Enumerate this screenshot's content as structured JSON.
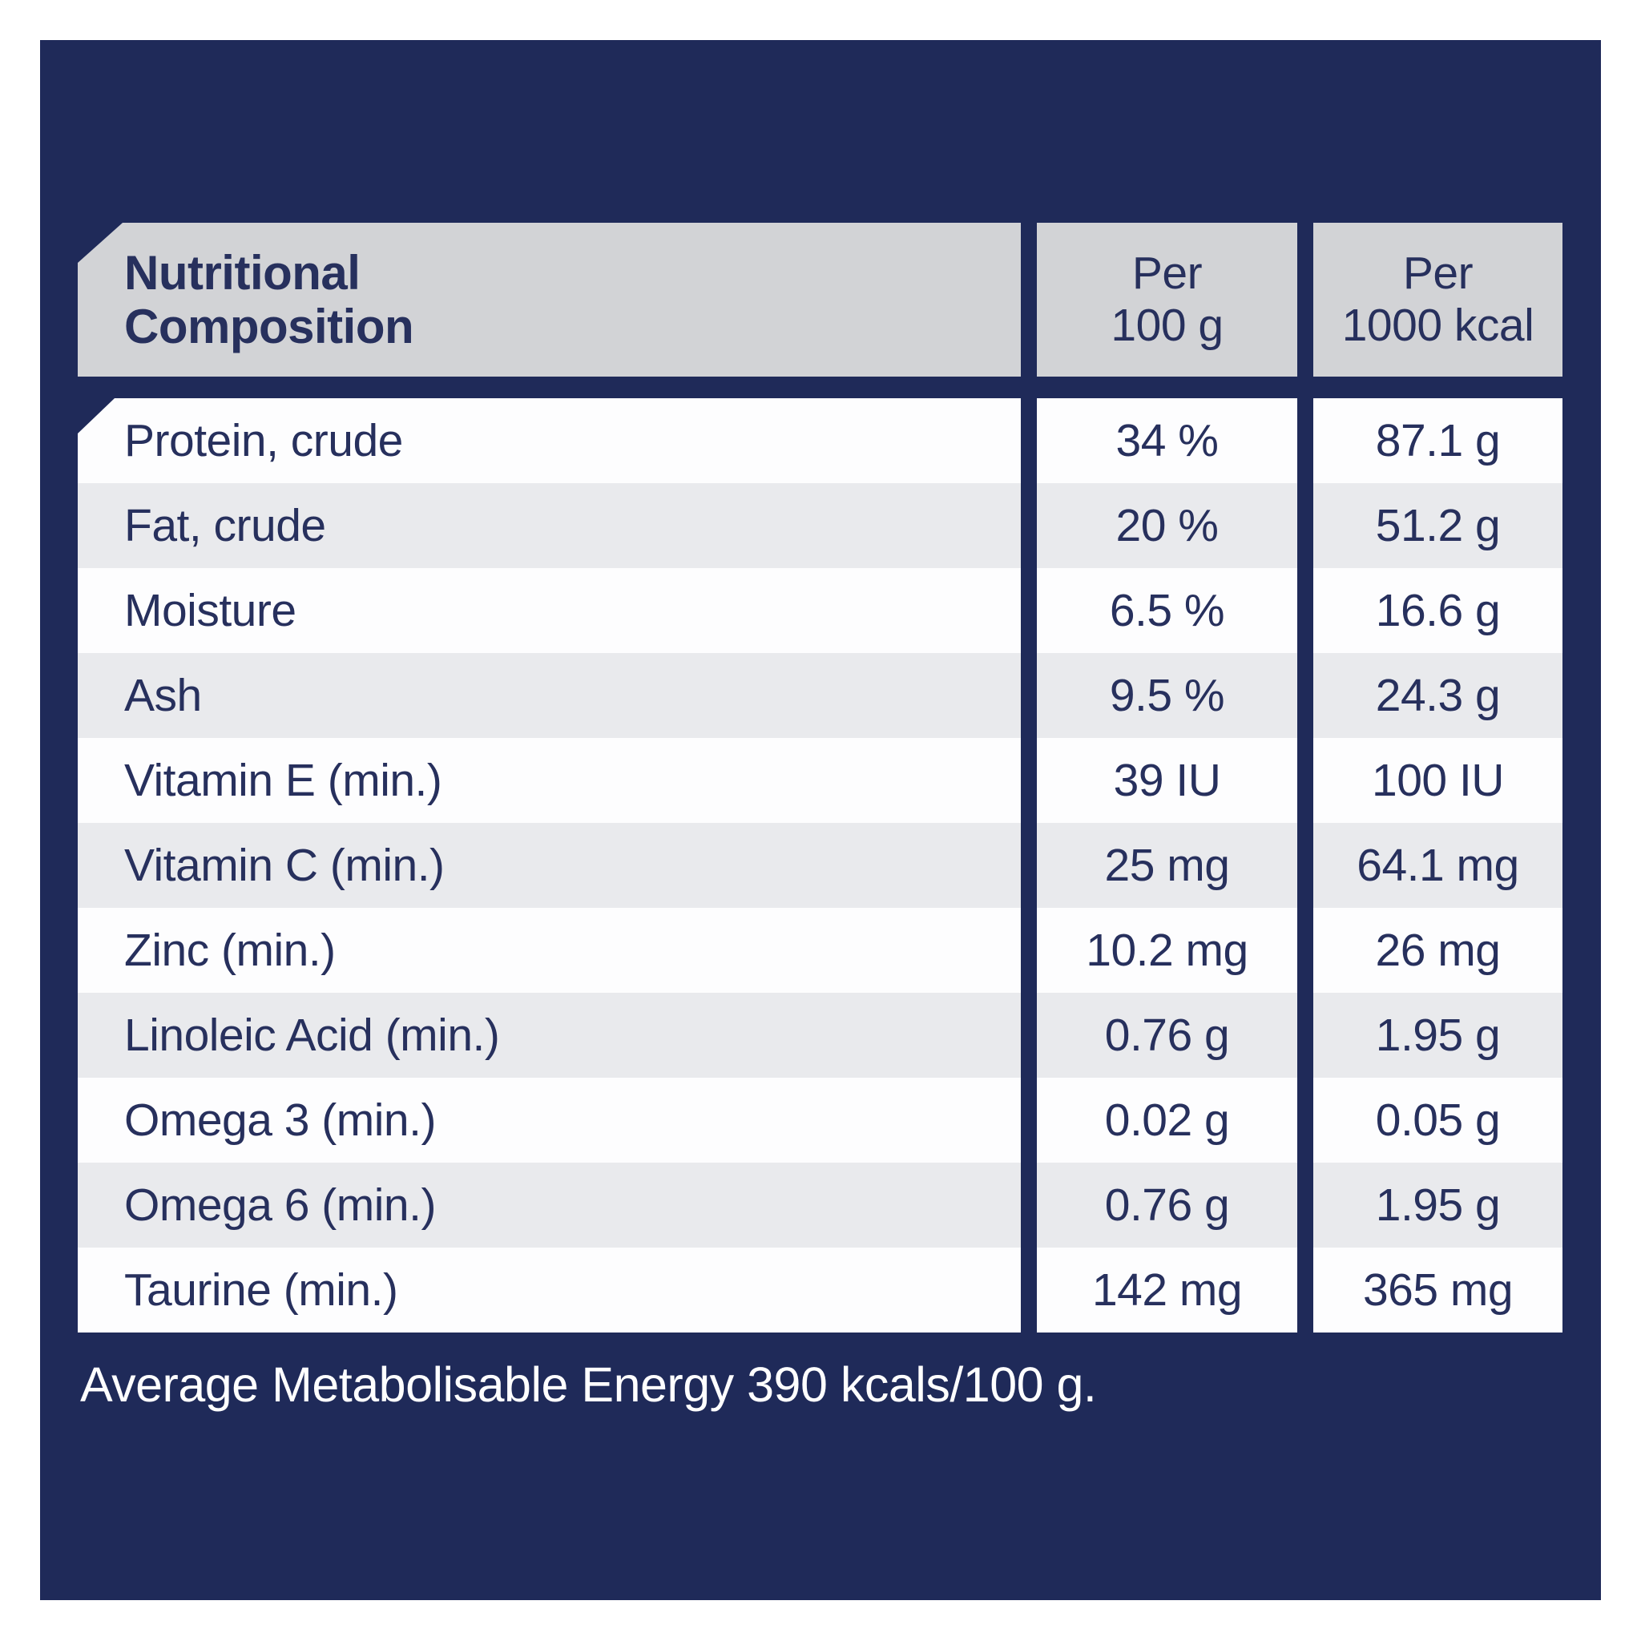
{
  "colors": {
    "panel_navy": "#1f2a59",
    "header_gray": "#d2d3d6",
    "row_gray": "#e9eaed",
    "row_white": "#fdfdfe",
    "text_navy": "#27305d",
    "footer_text": "#ffffff"
  },
  "table": {
    "header": {
      "col1_line1": "Nutritional",
      "col1_line2": "Composition",
      "col2_line1": "Per",
      "col2_line2": "100 g",
      "col3_line1": "Per",
      "col3_line2": "1000 kcal"
    },
    "rows": [
      {
        "label": "Protein, crude",
        "per100": "34 %",
        "per1000": "87.1 g"
      },
      {
        "label": "Fat, crude",
        "per100": "20 %",
        "per1000": "51.2 g"
      },
      {
        "label": "Moisture",
        "per100": "6.5 %",
        "per1000": "16.6 g"
      },
      {
        "label": "Ash",
        "per100": "9.5 %",
        "per1000": "24.3 g"
      },
      {
        "label": "Vitamin E (min.)",
        "per100": "39 IU",
        "per1000": "100 IU"
      },
      {
        "label": "Vitamin C (min.)",
        "per100": "25 mg",
        "per1000": "64.1 mg"
      },
      {
        "label": "Zinc (min.)",
        "per100": "10.2 mg",
        "per1000": "26 mg"
      },
      {
        "label": "Linoleic Acid (min.)",
        "per100": "0.76 g",
        "per1000": "1.95 g"
      },
      {
        "label": "Omega 3 (min.)",
        "per100": "0.02 g",
        "per1000": "0.05 g"
      },
      {
        "label": "Omega 6 (min.)",
        "per100": "0.76 g",
        "per1000": "1.95 g"
      },
      {
        "label": "Taurine (min.)",
        "per100": "142 mg",
        "per1000": "365 mg"
      }
    ]
  },
  "footer": {
    "text": "Average Metabolisable Energy 390 kcals/100 g."
  },
  "chart_data": {
    "type": "table",
    "title": "Nutritional Composition",
    "columns": [
      "Nutritional Composition",
      "Per 100 g",
      "Per 1000 kcal"
    ],
    "rows": [
      [
        "Protein, crude",
        "34 %",
        "87.1 g"
      ],
      [
        "Fat, crude",
        "20 %",
        "51.2 g"
      ],
      [
        "Moisture",
        "6.5 %",
        "16.6 g"
      ],
      [
        "Ash",
        "9.5 %",
        "24.3 g"
      ],
      [
        "Vitamin E (min.)",
        "39 IU",
        "100 IU"
      ],
      [
        "Vitamin C (min.)",
        "25 mg",
        "64.1 mg"
      ],
      [
        "Zinc (min.)",
        "10.2 mg",
        "26 mg"
      ],
      [
        "Linoleic Acid (min.)",
        "0.76 g",
        "1.95 g"
      ],
      [
        "Omega 3 (min.)",
        "0.02 g",
        "0.05 g"
      ],
      [
        "Omega 6 (min.)",
        "0.76 g",
        "1.95 g"
      ],
      [
        "Taurine (min.)",
        "142 mg",
        "365 mg"
      ]
    ],
    "annotations": [
      "Average Metabolisable Energy 390 kcals/100 g."
    ]
  }
}
